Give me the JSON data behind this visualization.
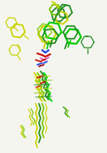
{
  "background_color": "#f5f5f0",
  "fig_width": 1.32,
  "fig_height": 1.89,
  "dpi": 100,
  "image_data_b64": "",
  "molecules": {
    "colors": {
      "yellow_green": "#c8d400",
      "lime_green": "#7bc800",
      "dark_green": "#228B22",
      "bright_green": "#00cc00",
      "red": "#cc0000",
      "pink": "#e060a0",
      "blue": "#2040cc",
      "dark_olive": "#556b2f"
    },
    "lw_main": 1.2,
    "lw_thin": 0.8
  }
}
